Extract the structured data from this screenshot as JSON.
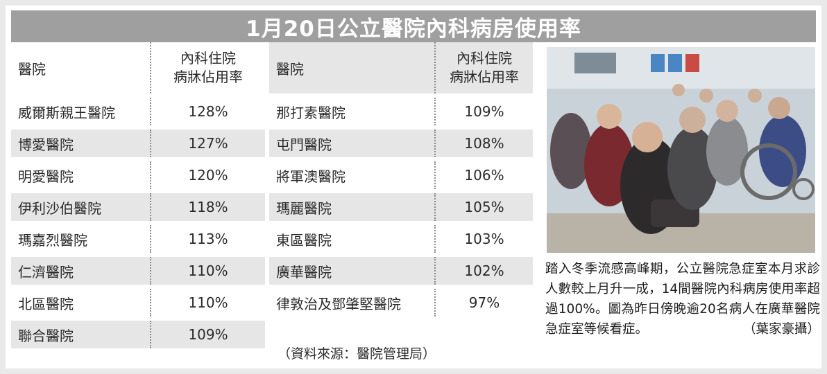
{
  "title": "1月20日公立醫院內科病房使用率",
  "table_left": {
    "header": {
      "hospital": "醫院",
      "rate_line1": "內科住院",
      "rate_line2": "病牀佔用率"
    },
    "rows": [
      {
        "hospital": "威爾斯親王醫院",
        "rate": "128%"
      },
      {
        "hospital": "博愛醫院",
        "rate": "127%"
      },
      {
        "hospital": "明愛醫院",
        "rate": "120%"
      },
      {
        "hospital": "伊利沙伯醫院",
        "rate": "118%"
      },
      {
        "hospital": "瑪嘉烈醫院",
        "rate": "113%"
      },
      {
        "hospital": "仁濟醫院",
        "rate": "110%"
      },
      {
        "hospital": "北區醫院",
        "rate": "110%"
      },
      {
        "hospital": "聯合醫院",
        "rate": "109%"
      }
    ]
  },
  "table_right": {
    "header": {
      "hospital": "醫院",
      "rate_line1": "內科住院",
      "rate_line2": "病牀佔用率"
    },
    "rows": [
      {
        "hospital": "那打素醫院",
        "rate": "109%"
      },
      {
        "hospital": "屯門醫院",
        "rate": "108%"
      },
      {
        "hospital": "將軍澳醫院",
        "rate": "106%"
      },
      {
        "hospital": "瑪麗醫院",
        "rate": "105%"
      },
      {
        "hospital": "東區醫院",
        "rate": "103%"
      },
      {
        "hospital": "廣華醫院",
        "rate": "102%"
      },
      {
        "hospital": "律敦治及鄧肇堅醫院",
        "rate": "97%"
      }
    ]
  },
  "source": "（資料來源：醫院管理局）",
  "caption": {
    "text": "踏入冬季流感高峰期，公立醫院急症室本月求診人數較上月升一成，14間醫院內科病房使用率超過100%。圖為昨日傍晚逾20名病人在廣華醫院急症室等候看症。",
    "credit": "（葉家豪攝）"
  },
  "colors": {
    "title_bar": "#9f9f9f",
    "row_shade": "#e6e6e6",
    "background": "#ffffff"
  }
}
